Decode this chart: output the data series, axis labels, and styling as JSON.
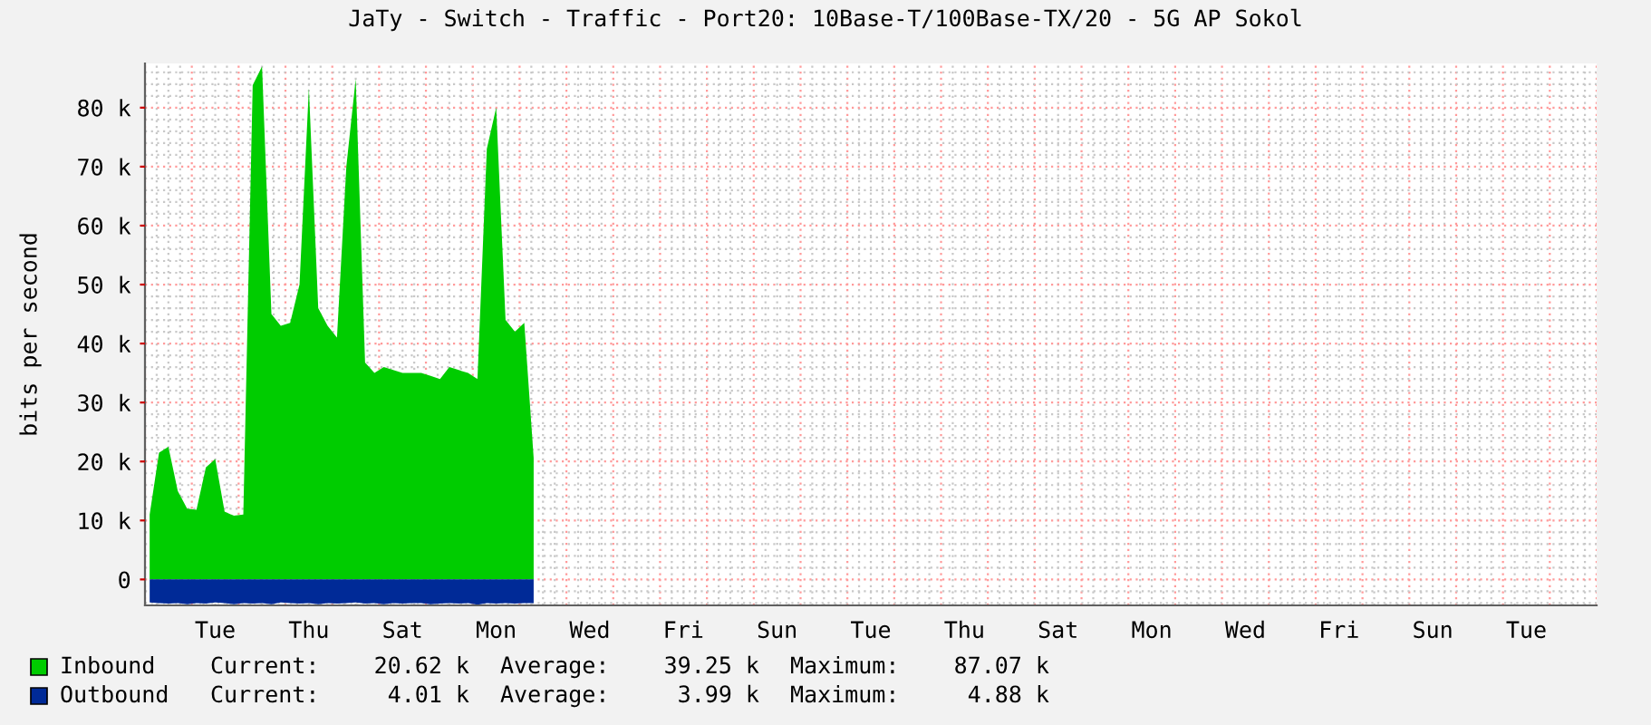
{
  "chart_data": {
    "type": "area",
    "title": "JaTy - Switch - Traffic - Port20: 10Base-T/100Base-TX/20 - 5G AP Sokol",
    "ylabel": "bits per second",
    "categories": [
      null,
      null,
      null,
      null,
      null,
      null,
      null,
      "Tue",
      null,
      null,
      null,
      null,
      null,
      null,
      null,
      null,
      null,
      "Thu",
      null,
      null,
      null,
      null,
      null,
      null,
      null,
      null,
      null,
      "Sat",
      null,
      null,
      null,
      null,
      null,
      null,
      null,
      null,
      null,
      "Mon",
      null,
      null,
      null,
      null,
      null,
      null,
      null,
      null,
      null,
      "Wed",
      null,
      null,
      null,
      null,
      null,
      null,
      null,
      null,
      null,
      "Fri",
      null,
      null,
      null,
      null,
      null,
      null,
      null,
      null,
      null,
      "Sun",
      null,
      null,
      null,
      null,
      null,
      null,
      null,
      null,
      null,
      "Tue",
      null,
      null,
      null,
      null,
      null,
      null,
      null,
      null,
      null,
      "Thu",
      null,
      null,
      null,
      null,
      null,
      null,
      null,
      null,
      null,
      "Sat",
      null,
      null,
      null,
      null,
      null,
      null,
      null,
      null,
      null,
      "Mon",
      null,
      null,
      null,
      null,
      null,
      null,
      null,
      null,
      null,
      "Wed",
      null,
      null,
      null,
      null,
      null,
      null,
      null,
      null,
      null,
      "Fri",
      null,
      null,
      null,
      null,
      null,
      null,
      null,
      null,
      null,
      "Sun",
      null,
      null,
      null,
      null,
      null,
      null,
      null,
      null,
      null,
      "Tue",
      null,
      null,
      null,
      null,
      null,
      null,
      null
    ],
    "series": [
      {
        "name": "Inbound",
        "color": "#00cc00",
        "values": [
          11000,
          21500,
          22500,
          15000,
          12000,
          11800,
          19000,
          20400,
          11500,
          10800,
          11000,
          83800,
          87000,
          45000,
          43000,
          43500,
          50000,
          83300,
          46000,
          43000,
          41000,
          70000,
          84900,
          36800,
          35000,
          36000,
          35500,
          35000,
          35000,
          35000,
          34500,
          34000,
          36000,
          35500,
          35000,
          34000,
          73000,
          80000,
          44000,
          42000,
          43500,
          20600,
          null,
          null,
          null,
          null,
          null,
          null,
          null,
          null,
          null,
          null,
          null,
          null,
          null,
          null,
          null,
          null,
          null,
          null,
          null,
          null,
          null,
          null,
          null,
          null,
          null,
          null,
          null,
          null,
          null,
          null,
          null,
          null,
          null,
          null,
          null,
          null,
          null,
          null,
          null,
          null,
          null,
          null,
          null,
          null,
          null,
          null,
          null,
          null,
          null,
          null,
          null,
          null,
          null,
          null,
          null,
          null,
          null,
          null,
          null,
          null,
          null,
          null,
          null,
          null,
          null,
          null,
          null,
          null,
          null,
          null,
          null,
          null,
          null,
          null,
          null,
          null,
          null,
          null,
          null,
          null,
          null,
          null,
          null,
          null,
          null,
          null,
          null,
          null,
          null,
          null,
          null,
          null,
          null,
          null,
          null,
          null,
          null,
          null,
          null,
          null,
          null,
          null,
          null,
          null,
          null,
          null,
          null,
          null,
          null,
          null,
          null,
          null,
          null
        ]
      },
      {
        "name": "Outbound",
        "color": "#002a97",
        "values": [
          -3900,
          -4000,
          -4100,
          -4000,
          -4200,
          -4000,
          -4100,
          -3900,
          -4000,
          -4200,
          -4000,
          -4100,
          -4000,
          -4200,
          -3900,
          -4000,
          -4100,
          -4000,
          -4200,
          -4000,
          -4100,
          -4000,
          -3900,
          -4100,
          -4000,
          -4200,
          -4000,
          -4100,
          -4000,
          -4000,
          -4200,
          -4100,
          -4000,
          -4100,
          -4000,
          -4300,
          -4000,
          -4100,
          -4000,
          -4100,
          -4000,
          -4000,
          null,
          null,
          null,
          null,
          null,
          null,
          null,
          null,
          null,
          null,
          null,
          null,
          null,
          null,
          null,
          null,
          null,
          null,
          null,
          null,
          null,
          null,
          null,
          null,
          null,
          null,
          null,
          null,
          null,
          null,
          null,
          null,
          null,
          null,
          null,
          null,
          null,
          null,
          null,
          null,
          null,
          null,
          null,
          null,
          null,
          null,
          null,
          null,
          null,
          null,
          null,
          null,
          null,
          null,
          null,
          null,
          null,
          null,
          null,
          null,
          null,
          null,
          null,
          null,
          null,
          null,
          null,
          null,
          null,
          null,
          null,
          null,
          null,
          null,
          null,
          null,
          null,
          null,
          null,
          null,
          null,
          null,
          null,
          null,
          null,
          null,
          null,
          null,
          null,
          null,
          null,
          null,
          null,
          null,
          null,
          null,
          null,
          null,
          null,
          null,
          null,
          null,
          null,
          null,
          null,
          null,
          null,
          null,
          null,
          null,
          null,
          null,
          null
        ]
      }
    ],
    "ylim": [
      -4400,
      87500
    ],
    "yticks": [
      0,
      {
        "value": 10000,
        "label": "10 k"
      },
      {
        "value": 20000,
        "label": "20 k"
      },
      {
        "value": 30000,
        "label": "30 k"
      },
      {
        "value": 40000,
        "label": "40 k"
      },
      {
        "value": 50000,
        "label": "50 k"
      },
      {
        "value": 60000,
        "label": "60 k"
      },
      {
        "value": 70000,
        "label": "70 k"
      },
      {
        "value": 80000,
        "label": "80 k"
      }
    ],
    "grid": true,
    "legend": "bottom",
    "annotations": [
      "Current:    20.62 k",
      "Average:    39.25 k",
      "Maximum:    87.07 k",
      "Current:     4.01 k",
      "Average:     3.99 k",
      "Maximum:     4.88 k"
    ]
  }
}
